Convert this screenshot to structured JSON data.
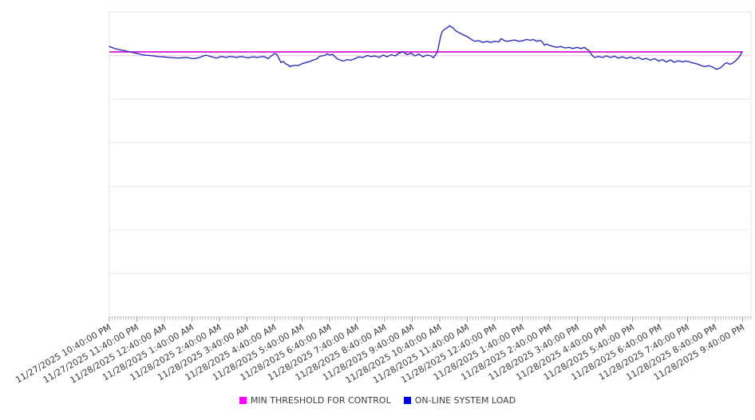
{
  "legend": {
    "items": [
      {
        "label": "MIN THRESHOLD FOR CONTROL",
        "color": "#ff00ff",
        "icon": "magenta-square-swatch"
      },
      {
        "label": "ON-LINE SYSTEM LOAD",
        "color": "#0000e0",
        "icon": "blue-square-swatch"
      }
    ]
  },
  "chart_data": {
    "type": "line",
    "title": "",
    "xlabel": "",
    "ylabel": "",
    "x_axis": {
      "tick_labels": [
        "11/27/2025 10:40:00 PM",
        "11/27/2025 11:40:00 PM",
        "11/28/2025 12:40:00 AM",
        "11/28/2025 1:40:00 AM",
        "11/28/2025 2:40:00 AM",
        "11/28/2025 3:40:00 AM",
        "11/28/2025 4:40:00 AM",
        "11/28/2025 5:40:00 AM",
        "11/28/2025 6:40:00 AM",
        "11/28/2025 7:40:00 AM",
        "11/28/2025 8:40:00 AM",
        "11/28/2025 9:40:00 AM",
        "11/28/2025 10:40:00 AM",
        "11/28/2025 11:40:00 AM",
        "11/28/2025 12:40:00 PM",
        "11/28/2025 1:40:00 PM",
        "11/28/2025 2:40:00 PM",
        "11/28/2025 3:40:00 PM",
        "11/28/2025 4:40:00 PM",
        "11/28/2025 5:40:00 PM",
        "11/28/2025 6:40:00 PM",
        "11/28/2025 7:40:00 PM",
        "11/28/2025 8:40:00 PM",
        "11/28/2025 9:40:00 PM"
      ],
      "tick_interval_minutes": 60,
      "minor_tick_interval_minutes": 6,
      "total_minutes": 1380,
      "label_rotation_deg": -30
    },
    "y_axis": {
      "min": 0,
      "max": 100,
      "gridline_divisions": 7,
      "labels_visible": false
    },
    "grid": {
      "horizontal": true,
      "vertical": false,
      "color": "#e9e9e9",
      "border_color": "#e3e3e3",
      "tinted_gridline_index": 1,
      "tinted_color": "#f2c9ee"
    },
    "series": [
      {
        "name": "MIN THRESHOLD FOR CONTROL",
        "type": "threshold",
        "color": "#dd11dd",
        "value": 86.9
      },
      {
        "name": "ON-LINE SYSTEM LOAD",
        "type": "line",
        "color": "#2d2dbb",
        "points": [
          [
            0,
            88.7
          ],
          [
            5,
            88.4
          ],
          [
            10,
            88.1
          ],
          [
            17,
            87.8
          ],
          [
            23,
            87.6
          ],
          [
            30,
            87.4
          ],
          [
            37,
            87.2
          ],
          [
            45,
            86.9
          ],
          [
            54,
            86.6
          ],
          [
            63,
            86.3
          ],
          [
            71,
            86.0
          ],
          [
            80,
            85.8
          ],
          [
            89,
            85.7
          ],
          [
            97,
            85.6
          ],
          [
            106,
            85.4
          ],
          [
            115,
            85.3
          ],
          [
            123,
            85.2
          ],
          [
            132,
            85.1
          ],
          [
            141,
            85.0
          ],
          [
            150,
            84.9
          ],
          [
            158,
            85.0
          ],
          [
            167,
            85.1
          ],
          [
            176,
            84.9
          ],
          [
            184,
            84.7
          ],
          [
            191,
            84.9
          ],
          [
            197,
            85.1
          ],
          [
            203,
            85.5
          ],
          [
            210,
            85.8
          ],
          [
            216,
            85.6
          ],
          [
            221,
            85.4
          ],
          [
            228,
            85.1
          ],
          [
            233,
            84.9
          ],
          [
            238,
            85.1
          ],
          [
            243,
            85.4
          ],
          [
            249,
            85.3
          ],
          [
            254,
            85.1
          ],
          [
            259,
            85.3
          ],
          [
            266,
            85.4
          ],
          [
            271,
            85.3
          ],
          [
            277,
            85.1
          ],
          [
            283,
            85.3
          ],
          [
            289,
            85.4
          ],
          [
            294,
            85.2
          ],
          [
            301,
            85.0
          ],
          [
            306,
            85.1
          ],
          [
            313,
            85.3
          ],
          [
            318,
            85.2
          ],
          [
            323,
            85.1
          ],
          [
            329,
            85.3
          ],
          [
            336,
            85.4
          ],
          [
            341,
            85.1
          ],
          [
            346,
            84.7
          ],
          [
            353,
            85.6
          ],
          [
            360,
            86.4
          ],
          [
            365,
            86.1
          ],
          [
            370,
            84.6
          ],
          [
            374,
            83.4
          ],
          [
            379,
            83.8
          ],
          [
            384,
            83.0
          ],
          [
            390,
            82.6
          ],
          [
            393,
            82.1
          ],
          [
            398,
            82.3
          ],
          [
            402,
            82.5
          ],
          [
            407,
            82.5
          ],
          [
            410,
            82.4
          ],
          [
            416,
            82.7
          ],
          [
            419,
            83.0
          ],
          [
            424,
            83.2
          ],
          [
            428,
            83.4
          ],
          [
            433,
            83.6
          ],
          [
            437,
            83.8
          ],
          [
            442,
            84.1
          ],
          [
            445,
            84.3
          ],
          [
            452,
            84.6
          ],
          [
            457,
            85.4
          ],
          [
            463,
            85.6
          ],
          [
            470,
            85.8
          ],
          [
            475,
            86.3
          ],
          [
            480,
            85.9
          ],
          [
            487,
            86.1
          ],
          [
            492,
            85.3
          ],
          [
            497,
            84.6
          ],
          [
            504,
            84.2
          ],
          [
            510,
            83.9
          ],
          [
            515,
            84.2
          ],
          [
            518,
            84.4
          ],
          [
            527,
            84.2
          ],
          [
            536,
            84.8
          ],
          [
            544,
            85.3
          ],
          [
            553,
            85.1
          ],
          [
            562,
            85.7
          ],
          [
            570,
            85.4
          ],
          [
            579,
            85.6
          ],
          [
            588,
            85.1
          ],
          [
            597,
            85.9
          ],
          [
            605,
            85.3
          ],
          [
            614,
            86.0
          ],
          [
            623,
            85.6
          ],
          [
            631,
            86.5
          ],
          [
            640,
            86.9
          ],
          [
            649,
            86.0
          ],
          [
            657,
            86.5
          ],
          [
            666,
            85.6
          ],
          [
            675,
            86.2
          ],
          [
            683,
            85.3
          ],
          [
            692,
            85.9
          ],
          [
            701,
            85.6
          ],
          [
            706,
            85.0
          ],
          [
            711,
            86.0
          ],
          [
            715,
            86.9
          ],
          [
            718,
            89.1
          ],
          [
            722,
            92.1
          ],
          [
            725,
            93.5
          ],
          [
            730,
            94.3
          ],
          [
            736,
            94.8
          ],
          [
            741,
            95.5
          ],
          [
            748,
            94.9
          ],
          [
            753,
            94.1
          ],
          [
            758,
            93.5
          ],
          [
            765,
            93.0
          ],
          [
            770,
            92.6
          ],
          [
            779,
            92.0
          ],
          [
            788,
            91.1
          ],
          [
            796,
            90.4
          ],
          [
            805,
            90.6
          ],
          [
            814,
            90.0
          ],
          [
            823,
            90.4
          ],
          [
            831,
            90.0
          ],
          [
            840,
            90.4
          ],
          [
            849,
            90.2
          ],
          [
            854,
            91.3
          ],
          [
            861,
            90.6
          ],
          [
            866,
            90.4
          ],
          [
            875,
            90.6
          ],
          [
            883,
            90.8
          ],
          [
            892,
            90.4
          ],
          [
            901,
            90.6
          ],
          [
            909,
            91.0
          ],
          [
            918,
            90.7
          ],
          [
            923,
            91.0
          ],
          [
            932,
            90.4
          ],
          [
            939,
            90.7
          ],
          [
            944,
            90.1
          ],
          [
            948,
            89.1
          ],
          [
            953,
            89.5
          ],
          [
            958,
            89.1
          ],
          [
            967,
            88.7
          ],
          [
            976,
            88.4
          ],
          [
            984,
            88.7
          ],
          [
            993,
            88.2
          ],
          [
            1002,
            88.4
          ],
          [
            1010,
            88.0
          ],
          [
            1019,
            88.4
          ],
          [
            1028,
            88.0
          ],
          [
            1035,
            88.4
          ],
          [
            1040,
            87.8
          ],
          [
            1045,
            87.4
          ],
          [
            1052,
            85.8
          ],
          [
            1057,
            85.1
          ],
          [
            1066,
            85.4
          ],
          [
            1075,
            85.1
          ],
          [
            1083,
            85.6
          ],
          [
            1092,
            85.1
          ],
          [
            1101,
            85.5
          ],
          [
            1109,
            84.9
          ],
          [
            1118,
            85.3
          ],
          [
            1127,
            84.8
          ],
          [
            1136,
            85.2
          ],
          [
            1144,
            84.7
          ],
          [
            1153,
            85.1
          ],
          [
            1162,
            84.4
          ],
          [
            1170,
            84.8
          ],
          [
            1179,
            84.2
          ],
          [
            1188,
            84.7
          ],
          [
            1197,
            83.9
          ],
          [
            1205,
            84.4
          ],
          [
            1214,
            83.6
          ],
          [
            1223,
            84.3
          ],
          [
            1231,
            83.5
          ],
          [
            1240,
            84.0
          ],
          [
            1249,
            83.6
          ],
          [
            1254,
            83.9
          ],
          [
            1261,
            83.8
          ],
          [
            1268,
            83.4
          ],
          [
            1275,
            83.2
          ],
          [
            1282,
            82.9
          ],
          [
            1289,
            82.5
          ],
          [
            1297,
            82.1
          ],
          [
            1306,
            82.4
          ],
          [
            1315,
            81.9
          ],
          [
            1323,
            81.2
          ],
          [
            1332,
            81.7
          ],
          [
            1341,
            83.0
          ],
          [
            1346,
            83.4
          ],
          [
            1351,
            82.9
          ],
          [
            1356,
            83.0
          ],
          [
            1362,
            83.6
          ],
          [
            1367,
            84.3
          ],
          [
            1374,
            85.6
          ],
          [
            1379,
            86.9
          ]
        ]
      }
    ],
    "legend_position": "bottom-center"
  }
}
